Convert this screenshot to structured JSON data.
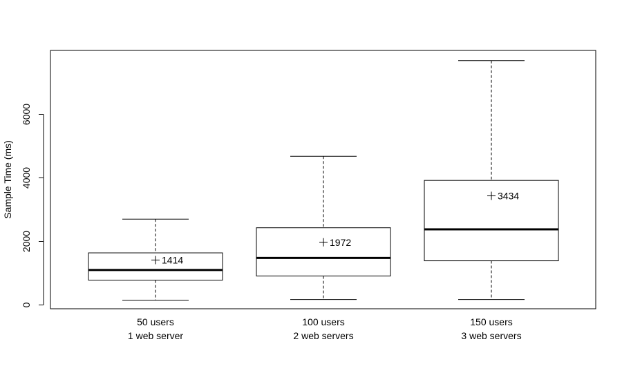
{
  "chart_data": {
    "type": "box",
    "ylabel": "Sample Time (ms)",
    "ylim": [
      0,
      7700
    ],
    "yticks": [
      0,
      2000,
      4000,
      6000
    ],
    "grid": false,
    "categories": [
      [
        "50 users",
        "1 web server"
      ],
      [
        "100 users",
        "2 web servers"
      ],
      [
        "150 users",
        "3 web servers"
      ]
    ],
    "boxes": [
      {
        "min": 150,
        "q1": 780,
        "median": 1100,
        "q3": 1640,
        "max": 2700,
        "mean": 1414,
        "mean_label": "1414"
      },
      {
        "min": 170,
        "q1": 910,
        "median": 1480,
        "q3": 2430,
        "max": 4680,
        "mean": 1972,
        "mean_label": "1972"
      },
      {
        "min": 170,
        "q1": 1390,
        "median": 2380,
        "q3": 3920,
        "max": 7690,
        "mean": 3434,
        "mean_label": "3434"
      }
    ],
    "mean_marker": "+"
  }
}
